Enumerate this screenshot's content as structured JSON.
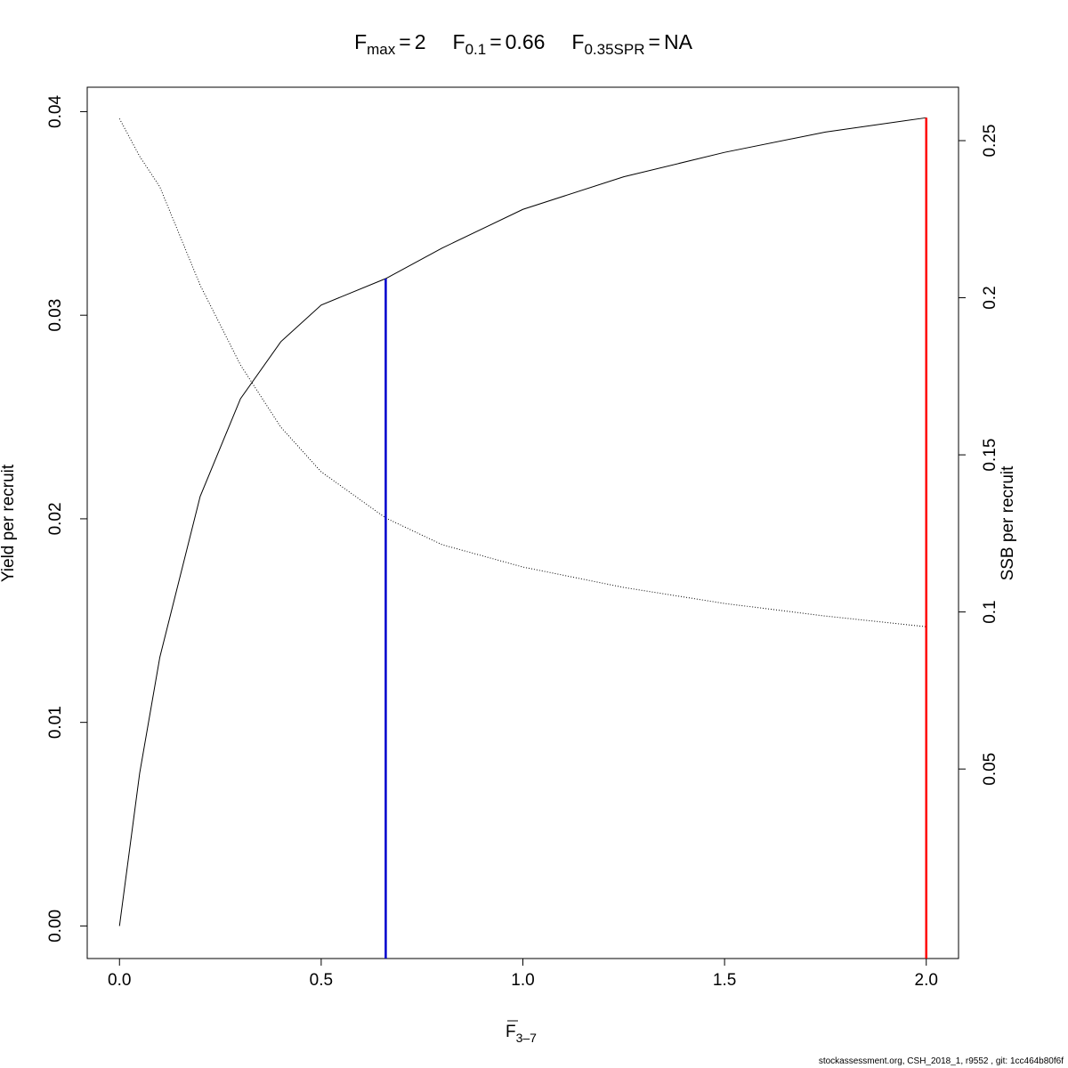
{
  "chart_data": {
    "type": "line",
    "title_parts": [
      {
        "symbol": "F",
        "subscript": "max",
        "relation": "=",
        "value": 2
      },
      {
        "symbol": "F",
        "subscript": "0.1",
        "relation": "=",
        "value": 0.66
      },
      {
        "symbol": "F",
        "subscript": "0.35SPR",
        "relation": "=",
        "value": "NA"
      }
    ],
    "x_label": {
      "symbol": "F",
      "subscript": "3–7"
    },
    "y_label": "Yield per recruit",
    "y2_label": "SSB per recruit",
    "footer": "stockassessment.org, CSH_2018_1, r9552 , git: 1cc464b80f6f",
    "x": [
      0,
      0.05,
      0.1,
      0.2,
      0.3,
      0.4,
      0.5,
      0.66,
      0.8,
      1.0,
      1.25,
      1.5,
      1.75,
      2.0
    ],
    "series": [
      {
        "name": "Yield per recruit",
        "color": "#000000",
        "dash": "solid",
        "values": [
          0,
          0.0075,
          0.0132,
          0.0211,
          0.0259,
          0.0287,
          0.0305,
          0.0318,
          0.0333,
          0.0352,
          0.0368,
          0.038,
          0.039,
          0.0397
        ]
      },
      {
        "name": "SSB per recruit",
        "color": "#000000",
        "dash": "dotted",
        "axis": "y2",
        "values": [
          0.257,
          0.245,
          0.2353,
          0.204,
          0.1786,
          0.1588,
          0.1446,
          0.1299,
          0.1214,
          0.1143,
          0.1078,
          0.1027,
          0.0987,
          0.0953
        ]
      }
    ],
    "reference_lines": [
      {
        "x": 0.66,
        "y": 0.0318,
        "color": "#0000cd"
      },
      {
        "x": 2.0,
        "y": 0.0397,
        "color": "#ff0000"
      }
    ],
    "xlim": [
      -0.08,
      2.08
    ],
    "ylim": [
      -0.0016,
      0.0412
    ],
    "y2lim": [
      -0.0103,
      0.267
    ],
    "xticks": [
      {
        "value": 0,
        "label": "0.0"
      },
      {
        "value": 0.5,
        "label": "0.5"
      },
      {
        "value": 1,
        "label": "1.0"
      },
      {
        "value": 1.5,
        "label": "1.5"
      },
      {
        "value": 2,
        "label": "2.0"
      }
    ],
    "yticks": [
      {
        "value": 0,
        "label": "0.00"
      },
      0.01,
      0.02,
      0.03,
      0.04
    ],
    "y2ticks": [
      0.05,
      0.1,
      0.15,
      0.2,
      0.25
    ]
  }
}
